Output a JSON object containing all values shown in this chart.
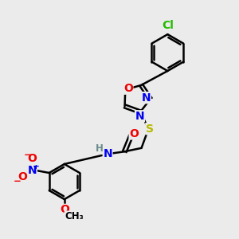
{
  "bg_color": "#ebebeb",
  "bond_color": "#000000",
  "bw": 1.8,
  "atom_colors": {
    "C": "#000000",
    "H": "#6a8a8a",
    "N": "#0000ee",
    "O": "#ee0000",
    "S": "#b8b800",
    "Cl": "#22bb00"
  },
  "fs": 10,
  "fs_small": 8.5
}
